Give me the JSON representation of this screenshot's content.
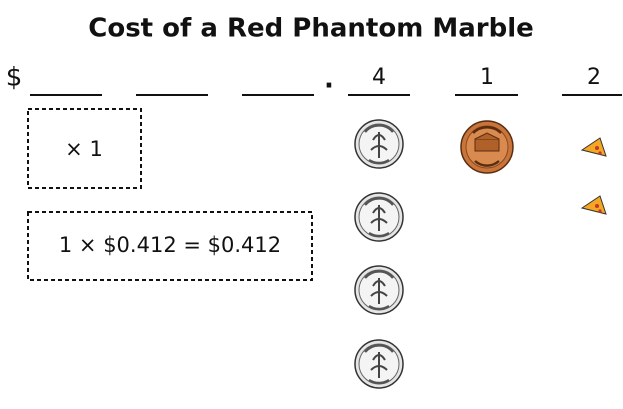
{
  "title": "Cost of a Red Phantom Marble",
  "dollar_sign": "$",
  "decimal_point": ".",
  "digits": [
    "4",
    "1",
    "2"
  ],
  "boxes": [
    "× 1",
    "1 × $0.412 = $0.412"
  ]
}
